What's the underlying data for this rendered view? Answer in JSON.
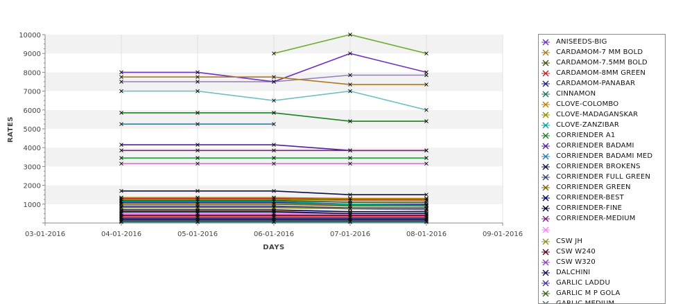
{
  "chart_data": {
    "type": "line",
    "xlabel": "DAYS",
    "ylabel": "RATES",
    "x_ticks": [
      "03-01-2016",
      "04-01-2016",
      "05-01-2016",
      "06-01-2016",
      "07-01-2016",
      "08-01-2016",
      "09-01-2016"
    ],
    "y_ticks": [
      "1000",
      "2000",
      "3000",
      "4000",
      "5000",
      "6000",
      "7000",
      "8000",
      "9000",
      "10000"
    ],
    "ylim": [
      0,
      10000
    ],
    "grid": true,
    "legend_position": "right",
    "series": [
      {
        "name": "ANISEEDS-BIG",
        "color": "#7030c0",
        "values": [
          8000,
          8000,
          7500,
          9000,
          8000
        ]
      },
      {
        "name": "CARDAMOM-7 MM BOLD",
        "color": "#b07820",
        "values": [
          7750,
          7750,
          7750,
          7350,
          7350
        ]
      },
      {
        "name": "CARDAMOM-7.5MM BOLD",
        "color": "#405010",
        "values": [
          1200,
          1200,
          1200,
          1100,
          1100
        ]
      },
      {
        "name": "CARDAMOM-8MM GREEN",
        "color": "#c02020",
        "values": [
          1300,
          1300,
          1300,
          1250,
          1250
        ]
      },
      {
        "name": "CARDAMOM-PANABAR",
        "color": "#202080",
        "values": [
          1100,
          1100,
          1100,
          1000,
          1000
        ]
      },
      {
        "name": "CINNAMON",
        "color": "#207060",
        "values": [
          250,
          250,
          250,
          250,
          250
        ]
      },
      {
        "name": "CLOVE-COLOMBO",
        "color": "#c08000",
        "values": [
          1350,
          1350,
          1350,
          1300,
          1300
        ]
      },
      {
        "name": "CLOVE-MADAGANSKAR",
        "color": "#909000",
        "values": [
          1250,
          1250,
          1250,
          1200,
          1200
        ]
      },
      {
        "name": "CLOVE-ZANZIBAR",
        "color": "#00a0a0",
        "values": [
          1150,
          1150,
          1150,
          1000,
          950
        ]
      },
      {
        "name": "CORRIENDER A1",
        "color": "#208020",
        "values": [
          5850,
          5850,
          5850,
          5400,
          5400
        ]
      },
      {
        "name": "CORRIENDER BADAMI",
        "color": "#5020a0",
        "values": [
          4150,
          4150,
          4150,
          3850,
          3850
        ]
      },
      {
        "name": "CORRIENDER BADAMI MED",
        "color": "#2080c0",
        "values": [
          5250,
          5250,
          5250,
          null,
          null
        ]
      },
      {
        "name": "CORRIENDER BROKENS",
        "color": "#101040",
        "values": [
          1700,
          1700,
          1700,
          1500,
          1500
        ]
      },
      {
        "name": "CORRIENDER FULL GREEN",
        "color": "#304070",
        "values": [
          900,
          900,
          900,
          800,
          800
        ]
      },
      {
        "name": "CORRIENDER GREEN",
        "color": "#806000",
        "values": [
          1000,
          1000,
          1000,
          900,
          900
        ]
      },
      {
        "name": "CORRIENDER-BEST",
        "color": "#000060",
        "values": [
          700,
          700,
          700,
          600,
          600
        ]
      },
      {
        "name": "CORRIENDER-FINE",
        "color": "#000030",
        "values": [
          600,
          600,
          600,
          500,
          500
        ]
      },
      {
        "name": "CORRIENDER-MEDIUM",
        "color": "#802080",
        "values": [
          3850,
          3850,
          3850,
          3850,
          3850
        ]
      },
      {
        "name": "",
        "color": "#ff80ff",
        "values": [
          500,
          500,
          500,
          450,
          450
        ]
      },
      {
        "name": "CSW JH",
        "color": "#909020",
        "values": [
          800,
          800,
          800,
          750,
          750
        ]
      },
      {
        "name": "CSW W240",
        "color": "#600020",
        "values": [
          400,
          400,
          400,
          400,
          400
        ]
      },
      {
        "name": "CSW W320",
        "color": "#9040c0",
        "values": [
          300,
          300,
          300,
          300,
          300
        ]
      },
      {
        "name": "DALCHINI",
        "color": "#101050",
        "values": [
          200,
          200,
          200,
          200,
          200
        ]
      },
      {
        "name": "GARLIC LADDU",
        "color": "#5030a0",
        "values": [
          150,
          150,
          150,
          150,
          150
        ]
      },
      {
        "name": "GARLIC M P GOLA",
        "color": "#406020",
        "values": [
          100,
          100,
          100,
          100,
          100
        ]
      },
      {
        "name": "GARLIC MEDIUM",
        "color": "#207070",
        "values": [
          50,
          50,
          50,
          50,
          50
        ]
      }
    ],
    "extra_series": [
      {
        "color": "#70b030",
        "values": [
          null,
          null,
          9000,
          10000,
          9000
        ]
      },
      {
        "color": "#9080b0",
        "values": [
          7500,
          7500,
          7500,
          7850,
          7850
        ]
      },
      {
        "color": "#70c0c0",
        "values": [
          7000,
          7000,
          6500,
          7000,
          6000
        ]
      },
      {
        "color": "#20a040",
        "values": [
          3450,
          3450,
          3450,
          3450,
          3450
        ]
      },
      {
        "color": "#c080c0",
        "values": [
          3150,
          3150,
          3150,
          3150,
          3150
        ]
      },
      {
        "color": "#e08080",
        "values": [
          1050,
          1050,
          1050,
          950,
          950
        ]
      },
      {
        "color": "#00c060",
        "values": [
          1000,
          1000,
          1000,
          950,
          900
        ]
      },
      {
        "color": "#6060e0",
        "values": [
          850,
          850,
          850,
          750,
          700
        ]
      },
      {
        "color": "#e0a060",
        "values": [
          650,
          650,
          650,
          600,
          600
        ]
      },
      {
        "color": "#40c0c0",
        "values": [
          550,
          550,
          550,
          500,
          500
        ]
      },
      {
        "color": "#a0a0a0",
        "values": [
          450,
          450,
          450,
          400,
          400
        ]
      },
      {
        "color": "#ff6060",
        "values": [
          350,
          350,
          350,
          350,
          350
        ]
      }
    ],
    "x_points": [
      1,
      2,
      3,
      4,
      5
    ]
  }
}
